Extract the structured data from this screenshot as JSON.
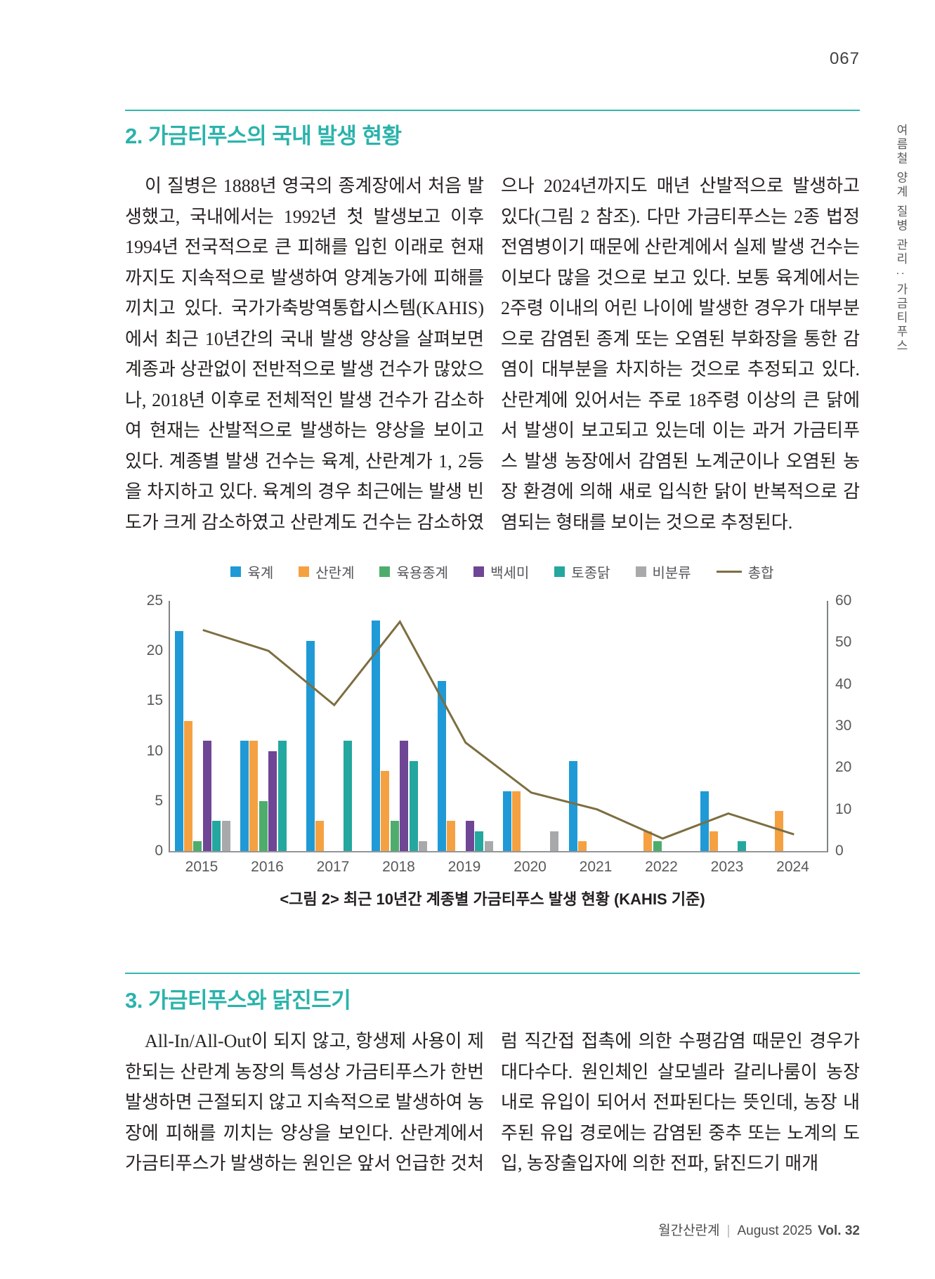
{
  "page": {
    "number": "067",
    "side_tab": "여름철 양계 질병 관리 : 가금티푸스",
    "footer": {
      "magazine": "월간산란계",
      "divider": "|",
      "issue": "August 2025",
      "volume": "Vol. 32"
    }
  },
  "section2": {
    "heading": "2. 가금티푸스의 국내 발생 현황",
    "body": "이 질병은 1888년 영국의 종계장에서 처음 발생했고, 국내에서는 1992년 첫 발생보고 이후 1994년 전국적으로 큰 피해를 입힌 이래로 현재까지도 지속적으로 발생하여 양계농가에 피해를 끼치고 있다. 국가가축방역통합시스템(KAHIS)에서 최근 10년간의 국내 발생 양상을 살펴보면 계종과 상관없이 전반적으로 발생 건수가 많았으나, 2018년 이후로 전체적인 발생 건수가 감소하여 현재는 산발적으로 발생하는 양상을 보이고 있다. 계종별 발생 건수는 육계, 산란계가 1, 2등을 차지하고 있다. 육계의 경우 최근에는 발생 빈도가 크게 감소하였고 산란계도 건수는 감소하였으나 2024년까지도 매년 산발적으로 발생하고 있다(그림 2 참조). 다만 가금티푸스는 2종 법정전염병이기 때문에 산란계에서 실제 발생 건수는 이보다 많을 것으로 보고 있다. 보통 육계에서는 2주령 이내의 어린 나이에 발생한 경우가 대부분으로 감염된 종계 또는 오염된 부화장을 통한 감염이 대부분을 차지하는 것으로 추정되고 있다. 산란계에 있어서는 주로 18주령 이상의 큰 닭에서 발생이 보고되고 있는데 이는 과거 가금티푸스 발생 농장에서 감염된 노계군이나 오염된 농장 환경에 의해 새로 입식한 닭이 반복적으로 감염되는 형태를 보이는 것으로 추정된다."
  },
  "figure": {
    "caption": "<그림 2> 최근 10년간 계종별 가금티푸스 발생 현황 (KAHIS 기준)"
  },
  "chart_data": {
    "type": "bar+line",
    "title": "최근 10년간 계종별 가금티푸스 발생 현황 (KAHIS 기준)",
    "categories": [
      "2015",
      "2016",
      "2017",
      "2018",
      "2019",
      "2020",
      "2021",
      "2022",
      "2023",
      "2024"
    ],
    "series": [
      {
        "name": "육계",
        "color": "#1f9ad6",
        "values": [
          22,
          11,
          21,
          23,
          17,
          6,
          9,
          0,
          6,
          0
        ]
      },
      {
        "name": "산란계",
        "color": "#f5a142",
        "values": [
          13,
          11,
          3,
          8,
          3,
          6,
          1,
          2,
          2,
          4
        ]
      },
      {
        "name": "육용종계",
        "color": "#4ead6c",
        "values": [
          1,
          5,
          0,
          3,
          0,
          0,
          0,
          1,
          0,
          0
        ]
      },
      {
        "name": "백세미",
        "color": "#6f4596",
        "values": [
          11,
          10,
          0,
          11,
          3,
          0,
          0,
          0,
          0,
          0
        ]
      },
      {
        "name": "토종닭",
        "color": "#24a79f",
        "values": [
          3,
          11,
          11,
          9,
          2,
          0,
          0,
          0,
          1,
          0
        ]
      },
      {
        "name": "비분류",
        "color": "#a8a9ab",
        "values": [
          3,
          0,
          0,
          1,
          1,
          2,
          0,
          0,
          0,
          0
        ]
      }
    ],
    "line": {
      "name": "총합",
      "color": "#7d6e41",
      "values": [
        53,
        48,
        35,
        55,
        26,
        14,
        10,
        3,
        9,
        4
      ]
    },
    "y_left": {
      "min": 0,
      "max": 25,
      "ticks": [
        0,
        5,
        10,
        15,
        20,
        25
      ]
    },
    "y_right": {
      "min": 0,
      "max": 60,
      "ticks": [
        0,
        10,
        20,
        30,
        40,
        50,
        60
      ]
    },
    "legend_position": "top",
    "grid": false
  },
  "section3": {
    "heading": "3. 가금티푸스와 닭진드기",
    "body": "All-In/All-Out이 되지 않고, 항생제 사용이 제한되는 산란계 농장의 특성상 가금티푸스가 한번 발생하면 근절되지 않고 지속적으로 발생하여 농장에 피해를 끼치는 양상을 보인다. 산란계에서 가금티푸스가 발생하는 원인은 앞서 언급한 것처럼 직간접 접촉에 의한 수평감염 때문인 경우가 대다수다. 원인체인 살모넬라 갈리나룸이 농장 내로 유입이 되어서 전파된다는 뜻인데, 농장 내 주된 유입 경로에는 감염된 중추 또는 노계의 도입, 농장출입자에 의한 전파, 닭진드기 매개"
  },
  "theme": {
    "accent": "#2ab3ab",
    "rule": "#35b7af",
    "body_text": "#262321",
    "axis_label": "#58595b"
  }
}
